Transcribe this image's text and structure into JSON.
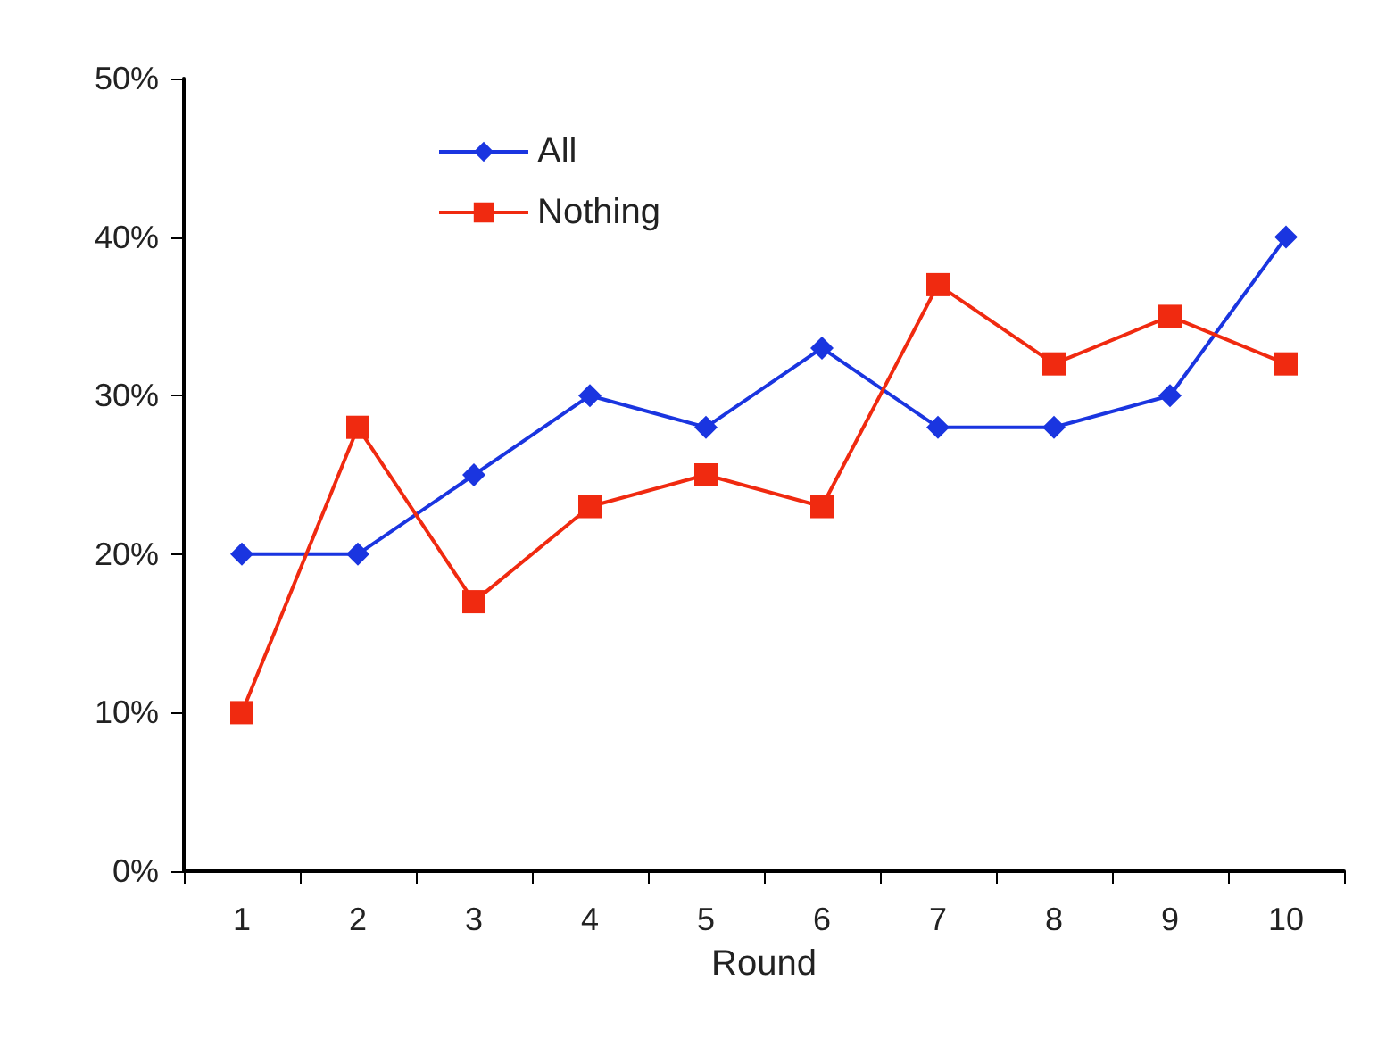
{
  "chart_data": {
    "type": "line",
    "xlabel": "Round",
    "categories": [
      "1",
      "2",
      "3",
      "4",
      "5",
      "6",
      "7",
      "8",
      "9",
      "10"
    ],
    "series": [
      {
        "name": "All",
        "color": "#1a35e0",
        "marker": "diamond",
        "values": [
          20,
          20,
          25,
          30,
          28,
          33,
          28,
          28,
          30,
          40
        ]
      },
      {
        "name": "Nothing",
        "color": "#f02a10",
        "marker": "square",
        "values": [
          10,
          28,
          17,
          23,
          25,
          23,
          37,
          32,
          35,
          32
        ]
      }
    ],
    "ylim": [
      0,
      50
    ],
    "yticks": [
      {
        "value": 0,
        "label": "0%"
      },
      {
        "value": 10,
        "label": "10%"
      },
      {
        "value": 20,
        "label": "20%"
      },
      {
        "value": 30,
        "label": "30%"
      },
      {
        "value": 40,
        "label": "40%"
      },
      {
        "value": 50,
        "label": "50%"
      }
    ],
    "grid": false,
    "legend": "top left"
  }
}
